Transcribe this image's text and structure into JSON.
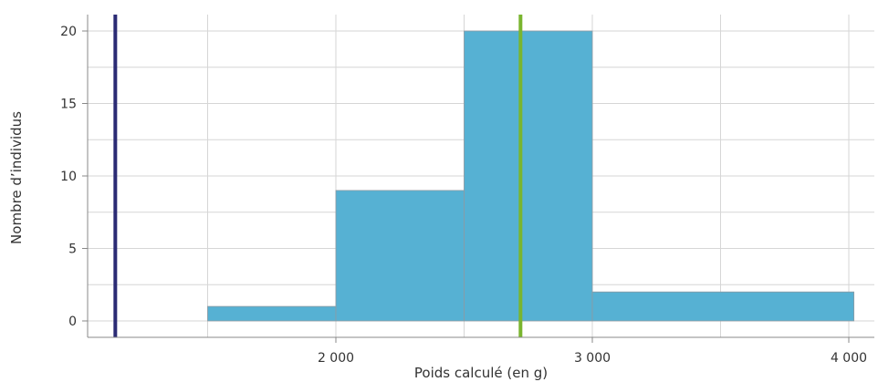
{
  "chart_data": {
    "type": "bar",
    "xlabel": "Poids calculé (en g)",
    "ylabel": "Nombre d’individus",
    "xlim": [
      1000,
      4100
    ],
    "ylim": [
      -1,
      21
    ],
    "x_ticks": [
      2000,
      3000,
      4000
    ],
    "x_tick_labels": [
      "2 000",
      "3 000",
      "4 000"
    ],
    "y_ticks": [
      0,
      5,
      10,
      15,
      20
    ],
    "y_tick_labels": [
      "0",
      "5",
      "10",
      "15",
      "20"
    ],
    "grid": true,
    "bins": [
      {
        "from": 1500,
        "to": 2000,
        "count": 1
      },
      {
        "from": 2000,
        "to": 2500,
        "count": 9
      },
      {
        "from": 2500,
        "to": 3000,
        "count": 20
      },
      {
        "from": 3000,
        "to": 4020,
        "count": 2
      }
    ],
    "reference_lines": [
      {
        "x": 1140,
        "color": "#2b2b74"
      },
      {
        "x": 2720,
        "color": "#7ab52f"
      }
    ],
    "colors": {
      "bar_fill": "#56b1d3",
      "bar_stroke": "#8e9aa2",
      "grid": "#d6d6d6",
      "axis": "#888888"
    }
  }
}
